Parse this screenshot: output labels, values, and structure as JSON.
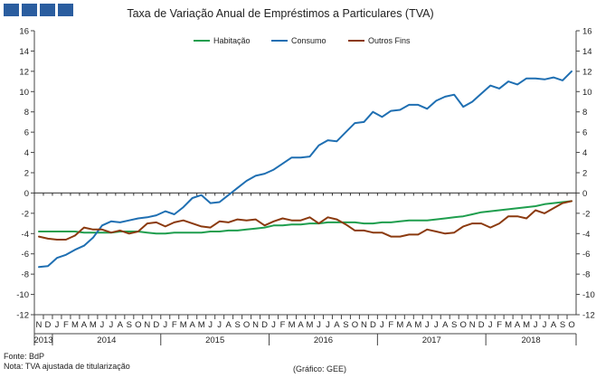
{
  "header": {
    "logo_label": "logo"
  },
  "footer": {
    "source": "Fonte: BdP",
    "note": "Nota: TVA ajustada de titularização",
    "credit": "(Gráfico: GEE)"
  },
  "chart_data": {
    "type": "line",
    "title": "Taxa de Variação Anual de Empréstimos a Particulares (TVA)",
    "ylim": [
      -12,
      16
    ],
    "yticks": [
      -12,
      -10,
      -8,
      -6,
      -4,
      -2,
      0,
      2,
      4,
      6,
      8,
      10,
      12,
      14,
      16
    ],
    "month_labels": [
      "N",
      "D",
      "J",
      "F",
      "M",
      "A",
      "M",
      "J",
      "J",
      "A",
      "S",
      "O",
      "N",
      "D",
      "J",
      "F",
      "M",
      "A",
      "M",
      "J",
      "J",
      "A",
      "S",
      "O",
      "N",
      "D",
      "J",
      "F",
      "M",
      "A",
      "M",
      "J",
      "J",
      "A",
      "S",
      "O",
      "N",
      "D",
      "J",
      "F",
      "M",
      "A",
      "M",
      "J",
      "J",
      "A",
      "S",
      "O",
      "N",
      "D",
      "J",
      "F",
      "M",
      "A",
      "M",
      "J",
      "J",
      "A",
      "S",
      "O"
    ],
    "years": [
      {
        "label": "2013",
        "start": 0,
        "end": 1
      },
      {
        "label": "2014",
        "start": 2,
        "end": 13
      },
      {
        "label": "2015",
        "start": 14,
        "end": 25
      },
      {
        "label": "2016",
        "start": 26,
        "end": 37
      },
      {
        "label": "2017",
        "start": 38,
        "end": 49
      },
      {
        "label": "2018",
        "start": 50,
        "end": 59
      }
    ],
    "legend": "top",
    "series": [
      {
        "name": "Habitação",
        "color": "#1f9e4e",
        "values": [
          -3.8,
          -3.8,
          -3.8,
          -3.8,
          -3.8,
          -3.9,
          -3.9,
          -3.9,
          -3.9,
          -3.8,
          -3.8,
          -3.8,
          -3.9,
          -4.0,
          -4.0,
          -3.9,
          -3.9,
          -3.9,
          -3.9,
          -3.8,
          -3.8,
          -3.7,
          -3.7,
          -3.6,
          -3.5,
          -3.4,
          -3.2,
          -3.2,
          -3.1,
          -3.1,
          -3.0,
          -3.0,
          -2.9,
          -2.9,
          -2.9,
          -2.9,
          -3.0,
          -3.0,
          -2.9,
          -2.9,
          -2.8,
          -2.7,
          -2.7,
          -2.7,
          -2.6,
          -2.5,
          -2.4,
          -2.3,
          -2.1,
          -1.9,
          -1.8,
          -1.7,
          -1.6,
          -1.5,
          -1.4,
          -1.3,
          -1.1,
          -1.0,
          -0.9,
          -0.8
        ]
      },
      {
        "name": "Consumo",
        "color": "#1f6fb2",
        "values": [
          -7.3,
          -7.2,
          -6.4,
          -6.1,
          -5.6,
          -5.2,
          -4.4,
          -3.2,
          -2.8,
          -2.9,
          -2.7,
          -2.5,
          -2.4,
          -2.2,
          -1.8,
          -2.1,
          -1.4,
          -0.5,
          -0.2,
          -1.0,
          -0.9,
          -0.2,
          0.5,
          1.2,
          1.7,
          1.9,
          2.3,
          2.9,
          3.5,
          3.5,
          3.6,
          4.7,
          5.2,
          5.1,
          6.0,
          6.9,
          7.0,
          8.0,
          7.5,
          8.1,
          8.2,
          8.7,
          8.7,
          8.3,
          9.1,
          9.5,
          9.7,
          8.5,
          9.0,
          9.8,
          10.6,
          10.3,
          11.0,
          10.7,
          11.3,
          11.3,
          11.2,
          11.4,
          11.1,
          12.0
        ]
      },
      {
        "name": "Outros Fins",
        "color": "#8b3a0f",
        "values": [
          -4.3,
          -4.5,
          -4.6,
          -4.6,
          -4.2,
          -3.4,
          -3.6,
          -3.6,
          -3.9,
          -3.7,
          -4.0,
          -3.8,
          -3.0,
          -2.9,
          -3.3,
          -2.9,
          -2.7,
          -3.0,
          -3.3,
          -3.4,
          -2.8,
          -2.9,
          -2.6,
          -2.7,
          -2.6,
          -3.2,
          -2.8,
          -2.5,
          -2.7,
          -2.7,
          -2.4,
          -3.0,
          -2.4,
          -2.6,
          -3.1,
          -3.7,
          -3.7,
          -3.9,
          -3.9,
          -4.3,
          -4.3,
          -4.1,
          -4.1,
          -3.6,
          -3.8,
          -4.0,
          -3.9,
          -3.3,
          -3.0,
          -3.0,
          -3.4,
          -3.0,
          -2.3,
          -2.3,
          -2.5,
          -1.7,
          -2.0,
          -1.5,
          -1.0,
          -0.8
        ]
      }
    ]
  }
}
